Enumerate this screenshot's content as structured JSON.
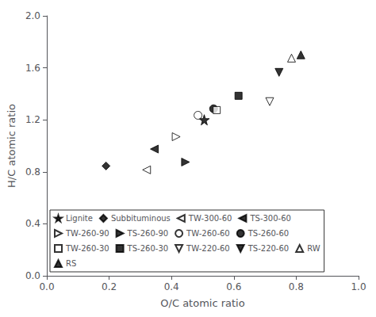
{
  "chart_data": {
    "type": "scatter",
    "xlabel": "O/C atomic ratio",
    "ylabel": "H/C atomic ratio",
    "xlim": [
      0.0,
      1.0
    ],
    "ylim": [
      0.0,
      2.0
    ],
    "xticks": [
      {
        "value": 0.0,
        "label": "0.0"
      },
      0.2,
      0.4,
      0.6,
      0.8,
      {
        "value": 1.0,
        "label": "1.0"
      }
    ],
    "yticks": [
      {
        "value": 0.0,
        "label": "0.0"
      },
      0.4,
      0.8,
      1.2,
      1.6,
      {
        "value": 2.0,
        "label": "2.0"
      }
    ],
    "grid": false,
    "legend": "lower left",
    "series": [
      {
        "name": "Lignite",
        "x": [
          0.505
        ],
        "values": [
          1.2
        ],
        "marker": "star",
        "color": "#000000"
      },
      {
        "name": "Subbituminous",
        "x": [
          0.19
        ],
        "values": [
          0.845
        ],
        "marker": "diamond",
        "color": "#000000"
      },
      {
        "name": "TW-300-60",
        "x": [
          0.32
        ],
        "values": [
          0.815
        ],
        "marker": "triangle-left-open",
        "color": "#000000"
      },
      {
        "name": "TS-300-60",
        "x": [
          0.345
        ],
        "values": [
          0.975
        ],
        "marker": "triangle-left",
        "color": "#000000"
      },
      {
        "name": "TW-260-90",
        "x": [
          0.415
        ],
        "values": [
          1.07
        ],
        "marker": "triangle-right-open",
        "color": "#000000"
      },
      {
        "name": "TS-260-90",
        "x": [
          0.445
        ],
        "values": [
          0.875
        ],
        "marker": "triangle-right",
        "color": "#000000"
      },
      {
        "name": "TW-260-60",
        "x": [
          0.485
        ],
        "values": [
          1.235
        ],
        "marker": "circle-open",
        "color": "#000000"
      },
      {
        "name": "TS-260-60",
        "x": [
          0.535
        ],
        "values": [
          1.285
        ],
        "marker": "circle",
        "color": "#000000"
      },
      {
        "name": "TW-260-30",
        "x": [
          0.545
        ],
        "values": [
          1.275
        ],
        "marker": "square-open",
        "color": "#000000"
      },
      {
        "name": "TS-260-30",
        "x": [
          0.615
        ],
        "values": [
          1.385
        ],
        "marker": "square",
        "color": "#000000"
      },
      {
        "name": "TW-220-60",
        "x": [
          0.715
        ],
        "values": [
          1.34
        ],
        "marker": "triangle-down-open",
        "color": "#000000"
      },
      {
        "name": "TS-220-60",
        "x": [
          0.745
        ],
        "values": [
          1.565
        ],
        "marker": "triangle-down",
        "color": "#000000"
      },
      {
        "name": "RW",
        "x": [
          0.785
        ],
        "values": [
          1.675
        ],
        "marker": "triangle-up-open",
        "color": "#000000"
      },
      {
        "name": "RS",
        "x": [
          0.815
        ],
        "values": [
          1.7
        ],
        "marker": "triangle-up",
        "color": "#000000"
      }
    ]
  }
}
